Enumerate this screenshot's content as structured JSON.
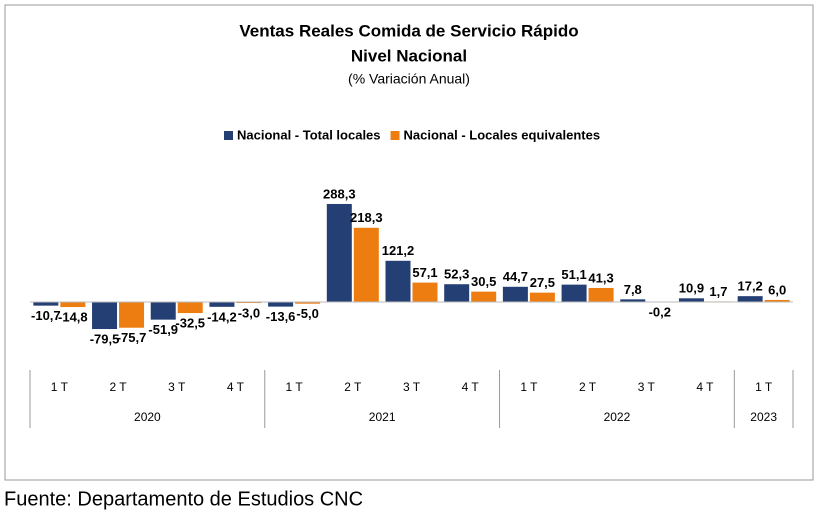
{
  "chart_data": {
    "type": "bar",
    "title": "Ventas Reales Comida de Servicio Rápido",
    "subtitle": "Nivel Nacional",
    "note": "(% Variación Anual)",
    "source": "Fuente: Departamento de Estudios CNC",
    "categories": [
      "1 T",
      "2 T",
      "3 T",
      "4 T",
      "1 T",
      "2 T",
      "3 T",
      "4 T",
      "1 T",
      "2 T",
      "3 T",
      "4 T",
      "1 T"
    ],
    "groups": [
      "2020",
      "2021",
      "2022",
      "2023"
    ],
    "group_sizes": [
      4,
      4,
      4,
      1
    ],
    "ylim": [
      -100,
      300
    ],
    "legend": "top",
    "series": [
      {
        "name": "Nacional - Total locales",
        "color": "#243f73",
        "values": [
          -10.7,
          -79.5,
          -51.9,
          -14.2,
          -13.6,
          288.3,
          121.2,
          52.3,
          44.7,
          51.1,
          7.8,
          10.9,
          17.2
        ],
        "value_labels": [
          "-10,7",
          "-79,5",
          "-51,9",
          "-14,2",
          "-13,6",
          "288,3",
          "121,2",
          "52,3",
          "44,7",
          "51,1",
          "7,8",
          "10,9",
          "17,2"
        ]
      },
      {
        "name": "Nacional - Locales equivalentes",
        "color": "#ed7d11",
        "values": [
          -14.8,
          -75.7,
          -32.5,
          -3.0,
          -5.0,
          218.3,
          57.1,
          30.5,
          27.5,
          41.3,
          -0.2,
          1.7,
          6.0
        ],
        "value_labels": [
          "-14,8",
          "-75,7",
          "-32,5",
          "-3,0",
          "-5,0",
          "218,3",
          "57,1",
          "30,5",
          "27,5",
          "41,3",
          "-0,2",
          "1,7",
          "6,0"
        ]
      }
    ]
  }
}
